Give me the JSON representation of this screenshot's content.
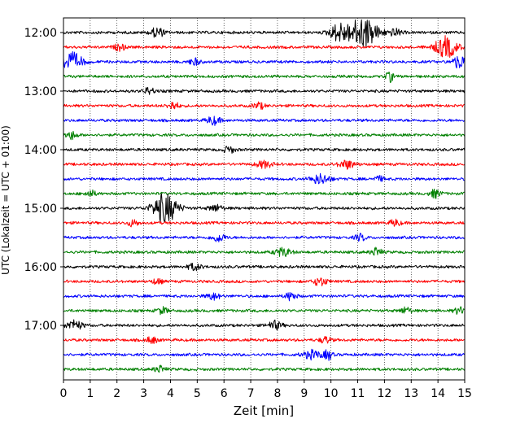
{
  "chart_data": {
    "type": "line",
    "xlabel": "Zeit  [min]",
    "ylabel": "UTC (Lokalzeit = UTC + 01:00)",
    "xlim": [
      0,
      15
    ],
    "x_ticks": [
      "0",
      "1",
      "2",
      "3",
      "4",
      "5",
      "6",
      "7",
      "8",
      "9",
      "10",
      "11",
      "12",
      "13",
      "14",
      "15"
    ],
    "y_ticks": [
      "12:00",
      "13:00",
      "14:00",
      "15:00",
      "16:00",
      "17:00"
    ],
    "grid_x": true,
    "colors": [
      "#000000",
      "#ff0000",
      "#0000ff",
      "#008000"
    ],
    "series": [
      {
        "start": "12:00",
        "color": "#000000",
        "events": [
          {
            "t": 3.5,
            "amp": 6,
            "w": 0.25
          },
          {
            "t": 10.3,
            "amp": 10,
            "w": 0.35
          },
          {
            "t": 11.2,
            "amp": 18,
            "w": 0.55
          },
          {
            "t": 12.4,
            "amp": 4,
            "w": 0.25
          }
        ]
      },
      {
        "start": "12:15",
        "color": "#ff0000",
        "events": [
          {
            "t": 2.1,
            "amp": 4,
            "w": 0.2
          },
          {
            "t": 14.3,
            "amp": 13,
            "w": 0.4
          }
        ]
      },
      {
        "start": "12:30",
        "color": "#0000ff",
        "events": [
          {
            "t": 0.3,
            "amp": 11,
            "w": 0.4
          },
          {
            "t": 4.9,
            "amp": 4,
            "w": 0.2
          },
          {
            "t": 14.8,
            "amp": 8,
            "w": 0.25
          }
        ]
      },
      {
        "start": "12:45",
        "color": "#008000",
        "events": [
          {
            "t": 12.2,
            "amp": 6,
            "w": 0.15
          }
        ]
      },
      {
        "start": "13:00",
        "color": "#000000",
        "events": [
          {
            "t": 3.2,
            "amp": 4,
            "w": 0.2
          }
        ]
      },
      {
        "start": "13:15",
        "color": "#ff0000",
        "events": [
          {
            "t": 4.1,
            "amp": 5,
            "w": 0.2
          },
          {
            "t": 7.3,
            "amp": 4,
            "w": 0.2
          }
        ]
      },
      {
        "start": "13:30",
        "color": "#0000ff",
        "events": [
          {
            "t": 5.6,
            "amp": 5,
            "w": 0.25
          }
        ]
      },
      {
        "start": "13:45",
        "color": "#008000",
        "events": [
          {
            "t": 0.3,
            "amp": 5,
            "w": 0.2
          }
        ]
      },
      {
        "start": "14:00",
        "color": "#000000",
        "events": [
          {
            "t": 6.2,
            "amp": 4,
            "w": 0.2
          }
        ]
      },
      {
        "start": "14:15",
        "color": "#ff0000",
        "events": [
          {
            "t": 7.5,
            "amp": 4,
            "w": 0.3
          },
          {
            "t": 10.6,
            "amp": 5,
            "w": 0.3
          }
        ]
      },
      {
        "start": "14:30",
        "color": "#0000ff",
        "events": [
          {
            "t": 9.6,
            "amp": 6,
            "w": 0.35
          },
          {
            "t": 11.8,
            "amp": 3,
            "w": 0.2
          }
        ]
      },
      {
        "start": "14:45",
        "color": "#008000",
        "events": [
          {
            "t": 1.0,
            "amp": 4,
            "w": 0.2
          },
          {
            "t": 13.9,
            "amp": 5,
            "w": 0.2
          }
        ]
      },
      {
        "start": "15:00",
        "color": "#000000",
        "events": [
          {
            "t": 3.8,
            "amp": 18,
            "w": 0.45
          },
          {
            "t": 5.7,
            "amp": 4,
            "w": 0.25
          }
        ]
      },
      {
        "start": "15:15",
        "color": "#ff0000",
        "events": [
          {
            "t": 2.6,
            "amp": 4,
            "w": 0.2
          },
          {
            "t": 12.4,
            "amp": 4,
            "w": 0.2
          }
        ]
      },
      {
        "start": "15:30",
        "color": "#0000ff",
        "events": [
          {
            "t": 5.8,
            "amp": 5,
            "w": 0.25
          },
          {
            "t": 11.1,
            "amp": 4,
            "w": 0.2
          }
        ]
      },
      {
        "start": "15:45",
        "color": "#008000",
        "events": [
          {
            "t": 8.2,
            "amp": 5,
            "w": 0.3
          },
          {
            "t": 11.7,
            "amp": 5,
            "w": 0.2
          }
        ]
      },
      {
        "start": "16:00",
        "color": "#000000",
        "events": [
          {
            "t": 4.9,
            "amp": 4,
            "w": 0.25
          }
        ]
      },
      {
        "start": "16:15",
        "color": "#ff0000",
        "events": [
          {
            "t": 3.5,
            "amp": 3,
            "w": 0.2
          },
          {
            "t": 9.6,
            "amp": 5,
            "w": 0.25
          }
        ]
      },
      {
        "start": "16:30",
        "color": "#0000ff",
        "events": [
          {
            "t": 5.6,
            "amp": 4,
            "w": 0.25
          },
          {
            "t": 8.5,
            "amp": 5,
            "w": 0.2
          }
        ]
      },
      {
        "start": "16:45",
        "color": "#008000",
        "events": [
          {
            "t": 3.7,
            "amp": 4,
            "w": 0.2
          },
          {
            "t": 12.8,
            "amp": 4,
            "w": 0.2
          },
          {
            "t": 14.8,
            "amp": 4,
            "w": 0.2
          }
        ]
      },
      {
        "start": "17:00",
        "color": "#000000",
        "events": [
          {
            "t": 0.4,
            "amp": 6,
            "w": 0.3
          },
          {
            "t": 7.9,
            "amp": 5,
            "w": 0.25
          }
        ]
      },
      {
        "start": "17:15",
        "color": "#ff0000",
        "events": [
          {
            "t": 3.3,
            "amp": 4,
            "w": 0.2
          },
          {
            "t": 9.8,
            "amp": 4,
            "w": 0.2
          }
        ]
      },
      {
        "start": "17:30",
        "color": "#0000ff",
        "events": [
          {
            "t": 9.3,
            "amp": 5,
            "w": 0.35
          },
          {
            "t": 9.9,
            "amp": 6,
            "w": 0.15
          }
        ]
      },
      {
        "start": "17:45",
        "color": "#008000",
        "events": [
          {
            "t": 3.6,
            "amp": 4,
            "w": 0.2
          }
        ]
      }
    ]
  }
}
